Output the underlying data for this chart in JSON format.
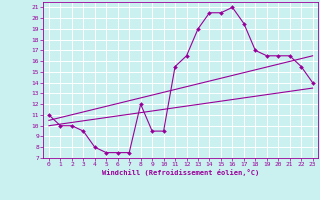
{
  "bg_color": "#caf0f0",
  "grid_color": "#ffffff",
  "line_color": "#990099",
  "marker_color": "#990099",
  "xlabel": "Windchill (Refroidissement éolien,°C)",
  "xlim": [
    -0.5,
    23.5
  ],
  "ylim": [
    7,
    21.5
  ],
  "xticks": [
    0,
    1,
    2,
    3,
    4,
    5,
    6,
    7,
    8,
    9,
    10,
    11,
    12,
    13,
    14,
    15,
    16,
    17,
    18,
    19,
    20,
    21,
    22,
    23
  ],
  "yticks": [
    7,
    8,
    9,
    10,
    11,
    12,
    13,
    14,
    15,
    16,
    17,
    18,
    19,
    20,
    21
  ],
  "curve1_x": [
    0,
    1,
    2,
    3,
    4,
    5,
    6,
    7,
    8,
    9,
    10,
    11,
    12,
    13,
    14,
    15,
    16,
    17,
    18,
    19,
    20,
    21,
    22,
    23
  ],
  "curve1_y": [
    11,
    10,
    10,
    9.5,
    8,
    7.5,
    7.5,
    7.5,
    12,
    9.5,
    9.5,
    15.5,
    16.5,
    19,
    20.5,
    20.5,
    21,
    19.5,
    17,
    16.5,
    16.5,
    16.5,
    15.5,
    14
  ],
  "line1_x": [
    0,
    23
  ],
  "line1_y": [
    10.5,
    16.5
  ],
  "line2_x": [
    0,
    23
  ],
  "line2_y": [
    10.0,
    13.5
  ]
}
